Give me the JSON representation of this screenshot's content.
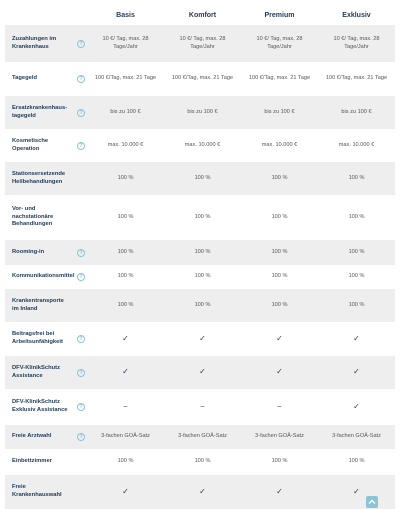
{
  "plans": [
    "Basis",
    "Komfort",
    "Premium",
    "Exklusiv"
  ],
  "rows": [
    {
      "label": "Zuzahlungen im Krankenhaus",
      "info": true,
      "values": [
        "10 €/ Tag, max. 28 Tage/Jahr",
        "10 €/ Tag, max. 28 Tage/Jahr",
        "10 €/ Tag, max. 28 Tage/Jahr",
        "10 €/ Tag, max. 28 Tage/Jahr"
      ]
    },
    {
      "label": "Tagegeld",
      "info": true,
      "values": [
        "100 €/Tag, max. 21 Tage",
        "100 €/Tag, max. 21 Tage",
        "100 €/Tag, max. 21 Tage",
        "100 €/Tag, max. 21 Tage"
      ]
    },
    {
      "label": "Ersatzkrankenhaus-tagegeld",
      "info": true,
      "values": [
        "bis zu 100 €",
        "bis zu 100 €",
        "bis zu 100 €",
        "bis zu 100 €"
      ]
    },
    {
      "label": "Kosmetische Operation",
      "info": true,
      "values": [
        "max. 10.000 €",
        "max. 10.000 €",
        "max. 10.000 €",
        "max. 10.000 €"
      ]
    },
    {
      "label": "Stationsersetzende Heilbehandlungen",
      "info": false,
      "values": [
        "100 %",
        "100 %",
        "100 %",
        "100 %"
      ]
    },
    {
      "label": "Vor- und nachstationäre Behandlungen",
      "info": false,
      "values": [
        "100 %",
        "100 %",
        "100 %",
        "100 %"
      ]
    },
    {
      "label": "Rooming-in",
      "info": true,
      "values": [
        "100 %",
        "100 %",
        "100 %",
        "100 %"
      ]
    },
    {
      "label": "Kommunikationsmittel",
      "info": true,
      "values": [
        "100 %",
        "100 %",
        "100 %",
        "100 %"
      ]
    },
    {
      "label": "Krankentransporte im Inland",
      "info": false,
      "values": [
        "100 %",
        "100 %",
        "100 %",
        "100 %"
      ]
    },
    {
      "label": "Beitragsfrei bei Arbeitsunfähigkeit",
      "info": true,
      "values": [
        "✓",
        "✓",
        "✓",
        "✓"
      ]
    },
    {
      "label": "DFV-KlinikSchutz Assistance",
      "info": true,
      "values": [
        "✓",
        "✓",
        "✓",
        "✓"
      ]
    },
    {
      "label": "DFV-KlinikSchutz Exklusiv Assistance",
      "info": true,
      "values": [
        "–",
        "–",
        "–",
        "✓"
      ]
    },
    {
      "label": "Freie Arztwahl",
      "info": true,
      "values": [
        "3-fachen GOÄ-Satz",
        "3-fachen GOÄ-Satz",
        "3-fachen GOÄ-Satz",
        "3-fachen GOÄ-Satz"
      ]
    },
    {
      "label": "Einbettzimmer",
      "info": false,
      "values": [
        "100 %",
        "100 %",
        "100 %",
        "100 %"
      ]
    },
    {
      "label": "Freie Krankenhauswahl",
      "info": false,
      "values": [
        "✓",
        "✓",
        "✓",
        "✓"
      ]
    }
  ],
  "info_glyph": "?",
  "icons": {
    "info": "question-circle-icon",
    "scroll_top": "chevron-up-icon"
  },
  "colors": {
    "accent": "#1f3a58",
    "info": "#8cc4d6",
    "row_alt": "#eeeeee"
  }
}
